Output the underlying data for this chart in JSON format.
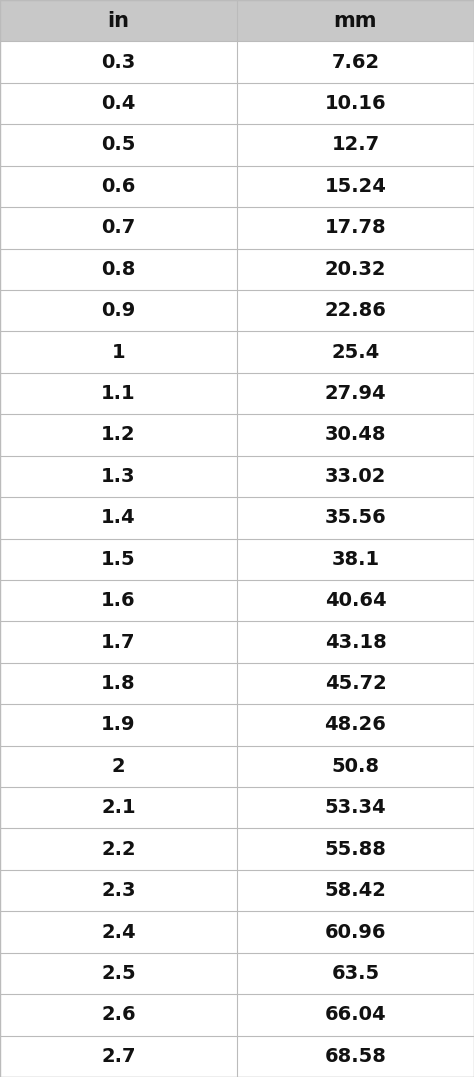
{
  "headers": [
    "in",
    "mm"
  ],
  "rows": [
    [
      "0.3",
      "7.62"
    ],
    [
      "0.4",
      "10.16"
    ],
    [
      "0.5",
      "12.7"
    ],
    [
      "0.6",
      "15.24"
    ],
    [
      "0.7",
      "17.78"
    ],
    [
      "0.8",
      "20.32"
    ],
    [
      "0.9",
      "22.86"
    ],
    [
      "1",
      "25.4"
    ],
    [
      "1.1",
      "27.94"
    ],
    [
      "1.2",
      "30.48"
    ],
    [
      "1.3",
      "33.02"
    ],
    [
      "1.4",
      "35.56"
    ],
    [
      "1.5",
      "38.1"
    ],
    [
      "1.6",
      "40.64"
    ],
    [
      "1.7",
      "43.18"
    ],
    [
      "1.8",
      "45.72"
    ],
    [
      "1.9",
      "48.26"
    ],
    [
      "2",
      "50.8"
    ],
    [
      "2.1",
      "53.34"
    ],
    [
      "2.2",
      "55.88"
    ],
    [
      "2.3",
      "58.42"
    ],
    [
      "2.4",
      "60.96"
    ],
    [
      "2.5",
      "63.5"
    ],
    [
      "2.6",
      "66.04"
    ],
    [
      "2.7",
      "68.58"
    ]
  ],
  "header_bg": "#c8c8c8",
  "row_bg": "#ffffff",
  "line_color": "#bbbbbb",
  "text_color": "#111111",
  "header_font_size": 15,
  "row_font_size": 14,
  "fig_width": 4.74,
  "fig_height": 10.77,
  "dpi": 100
}
